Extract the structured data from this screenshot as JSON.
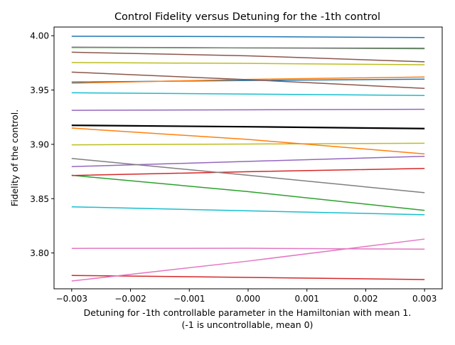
{
  "chart_data": {
    "type": "line",
    "title": "Control Fidelity versus Detuning for the -1th control",
    "xlabel": "Detuning for -1th controllable parameter in the Hamiltonian with mean 1.",
    "xlabel_line2": "(-1 is uncontrollable, mean 0)",
    "ylabel": "Fidelity of the control.",
    "xlim": [
      -0.0033,
      0.0033
    ],
    "ylim": [
      3.767,
      4.008
    ],
    "x_ticks": [
      -0.003,
      -0.002,
      -0.001,
      0.0,
      0.001,
      0.002,
      0.003
    ],
    "x_tick_labels": [
      "−0.003",
      "−0.002",
      "−0.001",
      "0.000",
      "0.001",
      "0.002",
      "0.003"
    ],
    "y_ticks": [
      3.8,
      3.85,
      3.9,
      3.95,
      4.0
    ],
    "y_tick_labels": [
      "3.80",
      "3.85",
      "3.90",
      "3.95",
      "4.00"
    ],
    "grid": false,
    "x": [
      -0.003,
      0.0,
      0.003
    ],
    "series": [
      {
        "color": "#1f77b4",
        "values": [
          3.9995,
          3.9992,
          3.9983
        ]
      },
      {
        "color": "#7f7f7f",
        "values": [
          3.9895,
          3.9888,
          3.988
        ]
      },
      {
        "color": "#2ca02c",
        "values": [
          3.9892,
          3.9888,
          3.9885
        ]
      },
      {
        "color": "#8c564b",
        "values": [
          3.9848,
          3.9815,
          3.976
        ]
      },
      {
        "color": "#bcbd22",
        "values": [
          3.9753,
          3.9745,
          3.9733
        ]
      },
      {
        "color": "#8c564b",
        "values": [
          3.9665,
          3.9595,
          3.9515
        ]
      },
      {
        "color": "#ff7f0e",
        "values": [
          3.9563,
          3.9598,
          3.962
        ]
      },
      {
        "color": "#1f77b4",
        "values": [
          3.9573,
          3.9588,
          3.96
        ]
      },
      {
        "color": "#17becf",
        "values": [
          3.9475,
          3.9463,
          3.945
        ]
      },
      {
        "color": "#9467bd",
        "values": [
          3.9313,
          3.9318,
          3.9323
        ]
      },
      {
        "color": "#000000",
        "values": [
          3.9175,
          3.9162,
          3.9145
        ],
        "bold": true
      },
      {
        "color": "#ff7f0e",
        "values": [
          3.915,
          3.9045,
          3.8912
        ]
      },
      {
        "color": "#bcbd22",
        "values": [
          3.8995,
          3.9003,
          3.901
        ]
      },
      {
        "color": "#7f7f7f",
        "values": [
          3.887,
          3.8715,
          3.8555
        ]
      },
      {
        "color": "#9467bd",
        "values": [
          3.8795,
          3.8843,
          3.889
        ]
      },
      {
        "color": "#d62728",
        "values": [
          3.8713,
          3.8748,
          3.8778
        ]
      },
      {
        "color": "#2ca02c",
        "values": [
          3.8715,
          3.8565,
          3.8392
        ]
      },
      {
        "color": "#17becf",
        "values": [
          3.8425,
          3.8388,
          3.8352
        ]
      },
      {
        "color": "#e377c2",
        "values": [
          3.8042,
          3.8043,
          3.8035
        ]
      },
      {
        "color": "#e377c2",
        "values": [
          3.7742,
          3.7925,
          3.8128
        ]
      },
      {
        "color": "#d62728",
        "values": [
          3.7793,
          3.7775,
          3.7755
        ]
      }
    ]
  }
}
